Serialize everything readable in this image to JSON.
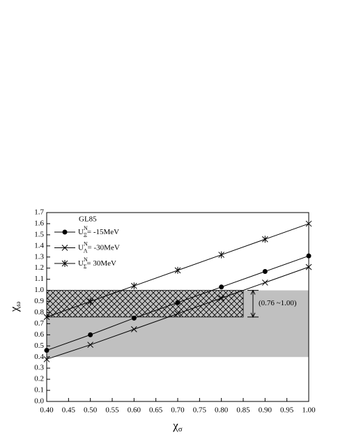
{
  "chart_data": {
    "type": "line",
    "title": "GL85",
    "xlabel": "χ",
    "xlabel_sub": "σ",
    "ylabel": "χ",
    "ylabel_sub": "ω",
    "xlim": [
      0.4,
      1.0
    ],
    "xticks": [
      {
        "value": 0.4,
        "label": "0.40"
      },
      0.45,
      {
        "value": 0.5,
        "label": "0.50"
      },
      0.55,
      {
        "value": 0.6,
        "label": "0.60"
      },
      0.65,
      {
        "value": 0.7,
        "label": "0.70"
      },
      0.75,
      {
        "value": 0.8,
        "label": "0.80"
      },
      0.85,
      {
        "value": 0.9,
        "label": "0.90"
      },
      0.95,
      {
        "value": 1.0,
        "label": "1.00"
      }
    ],
    "ylim": [
      0,
      1.7
    ],
    "yticks": [
      {
        "value": 0,
        "label": "0.0"
      },
      0.1,
      0.2,
      0.3,
      0.4,
      0.5,
      0.6,
      0.7,
      0.8,
      0.9,
      {
        "value": 1.0,
        "label": "1.0"
      },
      1.1,
      1.2,
      1.3,
      1.4,
      1.5,
      1.6,
      1.7
    ],
    "x": [
      0.4,
      0.5,
      0.6,
      0.7,
      0.8,
      0.9,
      1.0
    ],
    "series": [
      {
        "name": "U",
        "name_sup": "N",
        "name_sub": "Ξ",
        "name_rest": "= -15MeV",
        "marker": "circle",
        "color": "#000000",
        "values": [
          0.46,
          0.6,
          0.75,
          0.89,
          1.03,
          1.17,
          1.31
        ]
      },
      {
        "name": "U",
        "name_sup": "N",
        "name_sub": "Λ",
        "name_rest": "= -30MeV",
        "marker": "cross",
        "color": "#000000",
        "values": [
          0.38,
          0.51,
          0.65,
          0.79,
          0.93,
          1.07,
          1.21
        ]
      },
      {
        "name": "U",
        "name_sup": "N",
        "name_sub": "Σ",
        "name_rest": "= 30MeV",
        "marker": "star",
        "color": "#000000",
        "values": [
          0.76,
          0.9,
          1.04,
          1.18,
          1.32,
          1.46,
          1.6
        ]
      }
    ],
    "bands": [
      {
        "ylim": [
          0.4,
          1.0
        ],
        "xlim": [
          0.4,
          1.0
        ],
        "color": "#c0c0c0",
        "hatch": false
      },
      {
        "ylim": [
          0.76,
          1.0
        ],
        "xlim": [
          0.4,
          0.85
        ],
        "color": "#c0c0c0",
        "hatch": true
      }
    ],
    "annotation": "(0.76 ~1.00)"
  }
}
